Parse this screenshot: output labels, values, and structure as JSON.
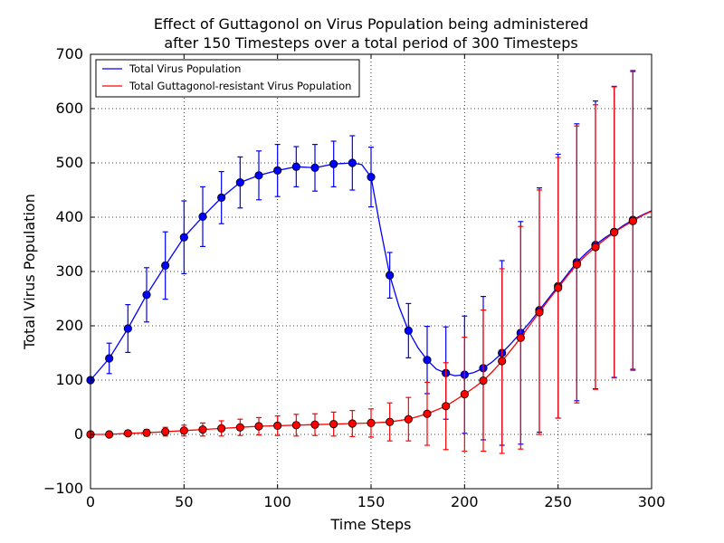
{
  "chart_data": {
    "type": "line",
    "title": [
      "Effect of Guttagonol on Virus Population being administered",
      "after 150 Timesteps over a total period of 300 Timesteps"
    ],
    "xlabel": "Time Steps",
    "ylabel": "Total Virus Population",
    "xlim": [
      0,
      300
    ],
    "ylim": [
      -100,
      700
    ],
    "xticks": [
      0,
      50,
      100,
      150,
      200,
      250,
      300
    ],
    "yticks": [
      -100,
      0,
      100,
      200,
      300,
      400,
      500,
      600,
      700
    ],
    "grid": true,
    "legend_position": "top-left",
    "series": [
      {
        "name": "Total Virus Population",
        "color": "#0000ff",
        "x": [
          0,
          10,
          20,
          30,
          40,
          50,
          60,
          70,
          80,
          90,
          100,
          110,
          120,
          130,
          140,
          150,
          160,
          170,
          180,
          190,
          200,
          210,
          220,
          230,
          240,
          250,
          260,
          270,
          280,
          290
        ],
        "y": [
          100,
          140,
          195,
          257,
          311,
          363,
          401,
          436,
          464,
          477,
          486,
          493,
          491,
          498,
          500,
          474,
          293,
          191,
          137,
          113,
          110,
          122,
          150,
          187,
          229,
          273,
          317,
          349,
          373,
          395
        ],
        "err": [
          0,
          28,
          44,
          50,
          62,
          67,
          55,
          48,
          47,
          45,
          48,
          37,
          43,
          42,
          50,
          55,
          42,
          50,
          62,
          85,
          108,
          132,
          170,
          205,
          225,
          243,
          255,
          265,
          268,
          275
        ],
        "line_x": [
          0,
          10,
          20,
          30,
          40,
          50,
          60,
          70,
          80,
          90,
          100,
          110,
          120,
          130,
          140,
          145,
          150,
          155,
          160,
          165,
          170,
          175,
          180,
          185,
          190,
          195,
          200,
          205,
          210,
          215,
          220,
          225,
          230,
          235,
          240,
          245,
          250,
          255,
          260,
          265,
          270,
          275,
          280,
          285,
          290,
          295,
          300
        ],
        "line_y": [
          100,
          140,
          195,
          257,
          311,
          363,
          401,
          436,
          464,
          477,
          486,
          493,
          491,
          498,
          500,
          497,
          474,
          380,
          293,
          235,
          191,
          160,
          137,
          120,
          113,
          108,
          110,
          114,
          122,
          134,
          150,
          168,
          187,
          207,
          229,
          251,
          273,
          295,
          317,
          334,
          349,
          362,
          373,
          385,
          395,
          404,
          412
        ]
      },
      {
        "name": "Total Guttagonol-resistant Virus Population",
        "color": "#ff0000",
        "x": [
          0,
          10,
          20,
          30,
          40,
          50,
          60,
          70,
          80,
          90,
          100,
          110,
          120,
          130,
          140,
          150,
          160,
          170,
          180,
          190,
          200,
          210,
          220,
          230,
          240,
          250,
          260,
          270,
          280,
          290
        ],
        "y": [
          0,
          0,
          2,
          3,
          5,
          7,
          9,
          11,
          13,
          15,
          16,
          17,
          18,
          19,
          20,
          21,
          23,
          28,
          38,
          52,
          74,
          99,
          135,
          178,
          225,
          270,
          313,
          345,
          372,
          393
        ],
        "err": [
          2,
          3,
          4,
          6,
          8,
          10,
          12,
          14,
          15,
          16,
          18,
          20,
          20,
          22,
          24,
          26,
          35,
          40,
          58,
          80,
          105,
          130,
          170,
          205,
          225,
          240,
          255,
          262,
          268,
          275
        ],
        "line_x": [
          0,
          10,
          20,
          30,
          40,
          50,
          60,
          70,
          80,
          90,
          100,
          110,
          120,
          130,
          140,
          150,
          160,
          170,
          180,
          190,
          200,
          205,
          210,
          215,
          220,
          225,
          230,
          235,
          240,
          245,
          250,
          255,
          260,
          265,
          270,
          275,
          280,
          285,
          290,
          295,
          300
        ],
        "line_y": [
          0,
          0,
          2,
          3,
          5,
          7,
          9,
          11,
          13,
          15,
          16,
          17,
          18,
          19,
          20,
          21,
          23,
          28,
          38,
          52,
          74,
          86,
          99,
          116,
          135,
          156,
          178,
          202,
          225,
          248,
          270,
          292,
          313,
          330,
          345,
          359,
          372,
          383,
          393,
          403,
          411
        ]
      }
    ]
  }
}
